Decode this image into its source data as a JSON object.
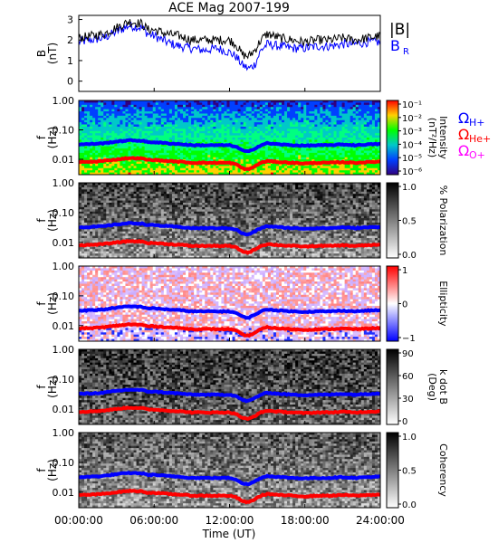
{
  "chart_data": {
    "type": "multi-panel spectrogram",
    "title": "ACE Mag 2007-199",
    "xlabel": "Time (UT)",
    "x_ticks": [
      "00:00:00",
      "06:00:00",
      "12:00:00",
      "18:00:00",
      "24:00:00"
    ],
    "xlim_hours": [
      0,
      24
    ],
    "panels": [
      {
        "id": "b",
        "type": "line",
        "ylabel": "B",
        "yunit": "(nT)",
        "ylim": [
          -0.5,
          3.2
        ],
        "y_ticks": [
          "0",
          "1",
          "2",
          "3"
        ],
        "legend": [
          {
            "label": "|B|",
            "color": "#000000"
          },
          {
            "label": "B",
            "sub": "R",
            "color": "#0000ff"
          }
        ],
        "series": [
          {
            "name": "|B|",
            "color": "#000000",
            "x": [
              0,
              1,
              2,
              3,
              4,
              5,
              5.5,
              6,
              7,
              8,
              9,
              10,
              11,
              12,
              12.5,
              13,
              13.5,
              14,
              14.5,
              15,
              16,
              17,
              18,
              19,
              20,
              21,
              22,
              23,
              24
            ],
            "values": [
              2.1,
              2.2,
              2.3,
              2.6,
              2.9,
              2.8,
              2.5,
              2.5,
              2.3,
              2.2,
              2.0,
              2.0,
              2.0,
              2.0,
              1.8,
              1.3,
              1.2,
              1.5,
              2.0,
              2.3,
              2.1,
              2.0,
              1.9,
              2.0,
              2.0,
              2.1,
              2.0,
              2.1,
              2.2
            ]
          },
          {
            "name": "B_R",
            "color": "#0000ff",
            "x": [
              0,
              1,
              2,
              3,
              4,
              5,
              5.5,
              6,
              7,
              8,
              9,
              10,
              11,
              12,
              12.5,
              13,
              13.5,
              14,
              14.5,
              15,
              16,
              17,
              18,
              19,
              20,
              21,
              22,
              23,
              24
            ],
            "values": [
              1.9,
              2.0,
              2.1,
              2.4,
              2.7,
              2.6,
              2.3,
              2.2,
              1.9,
              1.7,
              1.6,
              1.5,
              1.6,
              1.4,
              1.2,
              0.8,
              0.6,
              0.8,
              1.5,
              1.8,
              1.7,
              1.6,
              1.6,
              1.7,
              1.7,
              1.8,
              1.8,
              1.9,
              1.9
            ]
          }
        ]
      },
      {
        "id": "intensity",
        "type": "heatmap",
        "ylabel": "f",
        "yunit": "(Hz)",
        "ylim": [
          0.003,
          1.0
        ],
        "yscale": "log",
        "y_ticks": [
          "1.00",
          "0.10",
          "0.01"
        ],
        "colorbar": {
          "label": "Intensity",
          "unit": "(nT²/Hz)",
          "ticks": [
            "10⁻¹",
            "10⁻²",
            "10⁻³",
            "10⁻⁴",
            "10⁻⁵",
            "10⁻⁶"
          ],
          "colors": [
            "#ff0000",
            "#ffd000",
            "#00ff00",
            "#00c8c8",
            "#0040ff",
            "#300080"
          ]
        },
        "legend": [
          {
            "label": "Ω",
            "sub": "H+",
            "color": "#0000ff"
          },
          {
            "label": "Ω",
            "sub": "He+",
            "color": "#ff0000"
          },
          {
            "label": "Ω",
            "sub": "O+",
            "color": "#ff00ff"
          }
        ]
      },
      {
        "id": "polarization",
        "type": "heatmap",
        "ylabel": "f",
        "yunit": "(Hz)",
        "yscale": "log",
        "y_ticks": [
          "1.00",
          "0.10",
          "0.01"
        ],
        "colorbar": {
          "label": "% Polarization",
          "ticks": [
            "1.0",
            "0.5",
            "0.0"
          ],
          "colors": [
            "#000000",
            "#ffffff"
          ]
        }
      },
      {
        "id": "ellipticity",
        "type": "heatmap",
        "ylabel": "f",
        "yunit": "(Hz)",
        "yscale": "log",
        "y_ticks": [
          "1.00",
          "0.10",
          "0.01"
        ],
        "colorbar": {
          "label": "Ellipticity",
          "ticks": [
            "1",
            "0",
            "−1"
          ],
          "colors": [
            "#ff0000",
            "#ffffff",
            "#0000ff"
          ]
        }
      },
      {
        "id": "kdotb",
        "type": "heatmap",
        "ylabel": "f",
        "yunit": "(Hz)",
        "yscale": "log",
        "y_ticks": [
          "1.00",
          "0.10",
          "0.01"
        ],
        "colorbar": {
          "label": "k dot B",
          "unit": "(Deg)",
          "ticks": [
            "90",
            "60",
            "30",
            "0"
          ],
          "colors": [
            "#000000",
            "#ffffff"
          ]
        }
      },
      {
        "id": "coherency",
        "type": "heatmap",
        "ylabel": "f",
        "yunit": "(Hz)",
        "yscale": "log",
        "y_ticks": [
          "1.00",
          "0.10",
          "0.01"
        ],
        "colorbar": {
          "label": "Coherency",
          "ticks": [
            "1.0",
            "0.5",
            "0.0"
          ],
          "colors": [
            "#000000",
            "#ffffff"
          ]
        }
      }
    ],
    "gyrofrequency_curves": {
      "x_hours": [
        0,
        1,
        2,
        3,
        4,
        5,
        5.5,
        6,
        7,
        8,
        9,
        10,
        11,
        12,
        12.5,
        13,
        13.5,
        14,
        14.5,
        15,
        16,
        17,
        18,
        19,
        20,
        21,
        22,
        23,
        24
      ],
      "H+": {
        "color": "#0000ff",
        "values": [
          0.032,
          0.033,
          0.035,
          0.04,
          0.044,
          0.043,
          0.038,
          0.038,
          0.035,
          0.033,
          0.03,
          0.03,
          0.03,
          0.03,
          0.027,
          0.02,
          0.018,
          0.023,
          0.03,
          0.035,
          0.032,
          0.03,
          0.029,
          0.03,
          0.03,
          0.032,
          0.03,
          0.032,
          0.033
        ]
      },
      "He+": {
        "color": "#ff0000",
        "values": [
          0.008,
          0.0082,
          0.0088,
          0.0099,
          0.011,
          0.0107,
          0.0095,
          0.0095,
          0.0088,
          0.0083,
          0.0076,
          0.0076,
          0.0076,
          0.0076,
          0.0068,
          0.005,
          0.0045,
          0.0057,
          0.0076,
          0.0087,
          0.008,
          0.0076,
          0.0072,
          0.0076,
          0.0076,
          0.008,
          0.0076,
          0.008,
          0.0083
        ]
      }
    }
  }
}
